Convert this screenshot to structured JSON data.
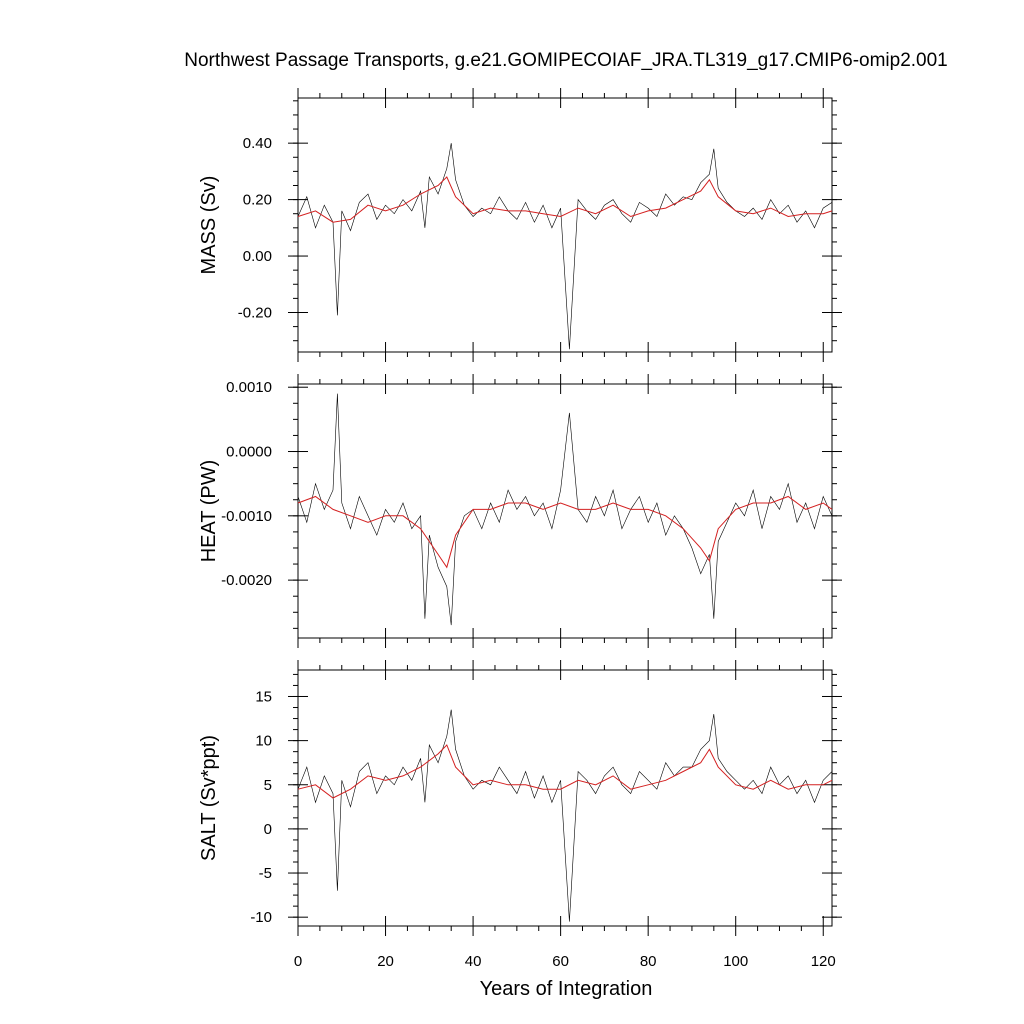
{
  "title": "Northwest Passage Transports, g.e21.GOMIPECOIAF_JRA.TL319_g17.CMIP6-omip2.001",
  "chart_data": [
    {
      "type": "line",
      "ylabel": "MASS (Sv)",
      "xlim": [
        0,
        122
      ],
      "ylim": [
        -0.34,
        0.56
      ],
      "yticks": [
        -0.2,
        0.0,
        0.2,
        0.4
      ],
      "ytick_labels": [
        "-0.20",
        "0.00",
        "0.20",
        "0.40"
      ],
      "series": [
        {
          "color": "#000000",
          "x": [
            0,
            2,
            4,
            6,
            8,
            9,
            10,
            12,
            14,
            16,
            18,
            20,
            22,
            24,
            26,
            28,
            29,
            30,
            32,
            34,
            35,
            36,
            38,
            40,
            42,
            44,
            46,
            48,
            50,
            52,
            54,
            56,
            58,
            60,
            62,
            64,
            66,
            68,
            70,
            72,
            74,
            76,
            78,
            80,
            82,
            84,
            86,
            88,
            90,
            92,
            94,
            95,
            96,
            98,
            100,
            102,
            104,
            106,
            108,
            110,
            112,
            114,
            116,
            118,
            120,
            122
          ],
          "y": [
            0.14,
            0.21,
            0.1,
            0.18,
            0.12,
            -0.21,
            0.16,
            0.09,
            0.19,
            0.22,
            0.13,
            0.18,
            0.15,
            0.2,
            0.16,
            0.23,
            0.1,
            0.28,
            0.22,
            0.31,
            0.4,
            0.27,
            0.18,
            0.14,
            0.17,
            0.15,
            0.21,
            0.16,
            0.13,
            0.19,
            0.12,
            0.18,
            0.1,
            0.17,
            -0.33,
            0.2,
            0.16,
            0.13,
            0.18,
            0.2,
            0.15,
            0.12,
            0.19,
            0.17,
            0.14,
            0.22,
            0.18,
            0.21,
            0.2,
            0.26,
            0.29,
            0.38,
            0.24,
            0.19,
            0.16,
            0.14,
            0.17,
            0.13,
            0.2,
            0.15,
            0.18,
            0.12,
            0.16,
            0.1,
            0.17,
            0.19
          ]
        },
        {
          "color": "#d42020",
          "x": [
            0,
            4,
            8,
            12,
            16,
            20,
            24,
            28,
            32,
            34,
            36,
            40,
            44,
            48,
            52,
            56,
            60,
            64,
            68,
            72,
            76,
            80,
            84,
            88,
            92,
            94,
            96,
            100,
            104,
            108,
            112,
            116,
            120,
            122
          ],
          "y": [
            0.14,
            0.16,
            0.12,
            0.13,
            0.18,
            0.16,
            0.18,
            0.22,
            0.25,
            0.28,
            0.21,
            0.15,
            0.17,
            0.16,
            0.16,
            0.15,
            0.14,
            0.17,
            0.15,
            0.18,
            0.14,
            0.16,
            0.17,
            0.2,
            0.23,
            0.27,
            0.21,
            0.16,
            0.15,
            0.17,
            0.14,
            0.15,
            0.15,
            0.16
          ]
        }
      ]
    },
    {
      "type": "line",
      "ylabel": "HEAT (PW)",
      "xlim": [
        0,
        122
      ],
      "ylim": [
        -0.0029,
        0.00105
      ],
      "yticks": [
        -0.002,
        -0.001,
        0.0,
        0.001
      ],
      "ytick_labels": [
        "-0.0020",
        "-0.0010",
        "0.0000",
        "0.0010"
      ],
      "series": [
        {
          "color": "#000000",
          "x": [
            0,
            2,
            4,
            6,
            8,
            9,
            10,
            12,
            14,
            16,
            18,
            20,
            22,
            24,
            26,
            28,
            29,
            30,
            32,
            34,
            35,
            36,
            38,
            40,
            42,
            44,
            46,
            48,
            50,
            52,
            54,
            56,
            58,
            60,
            62,
            64,
            66,
            68,
            70,
            72,
            74,
            76,
            78,
            80,
            82,
            84,
            86,
            88,
            90,
            92,
            94,
            95,
            96,
            98,
            100,
            102,
            104,
            106,
            108,
            110,
            112,
            114,
            116,
            118,
            120,
            122
          ],
          "y": [
            -0.0007,
            -0.0011,
            -0.0005,
            -0.0009,
            -0.0006,
            0.0009,
            -0.0008,
            -0.0012,
            -0.0007,
            -0.001,
            -0.0013,
            -0.0009,
            -0.0011,
            -0.0008,
            -0.0012,
            -0.001,
            -0.0026,
            -0.0013,
            -0.0018,
            -0.0021,
            -0.0027,
            -0.0014,
            -0.001,
            -0.0009,
            -0.0012,
            -0.0008,
            -0.0011,
            -0.0006,
            -0.0009,
            -0.0007,
            -0.001,
            -0.0008,
            -0.0012,
            -0.0006,
            0.0006,
            -0.0009,
            -0.0011,
            -0.0007,
            -0.001,
            -0.0006,
            -0.0012,
            -0.0009,
            -0.0007,
            -0.0011,
            -0.0008,
            -0.0013,
            -0.001,
            -0.0012,
            -0.0015,
            -0.0019,
            -0.0016,
            -0.0026,
            -0.0014,
            -0.0011,
            -0.0008,
            -0.001,
            -0.0006,
            -0.0012,
            -0.0007,
            -0.0009,
            -0.0005,
            -0.0011,
            -0.0008,
            -0.0012,
            -0.0007,
            -0.001
          ]
        },
        {
          "color": "#d42020",
          "x": [
            0,
            4,
            8,
            12,
            16,
            20,
            24,
            28,
            32,
            34,
            36,
            40,
            44,
            48,
            52,
            56,
            60,
            64,
            68,
            72,
            76,
            80,
            84,
            88,
            92,
            94,
            96,
            100,
            104,
            108,
            112,
            116,
            120,
            122
          ],
          "y": [
            -0.0008,
            -0.0007,
            -0.0009,
            -0.001,
            -0.0011,
            -0.001,
            -0.001,
            -0.0012,
            -0.0016,
            -0.0018,
            -0.0013,
            -0.0009,
            -0.0009,
            -0.0008,
            -0.0008,
            -0.0009,
            -0.0008,
            -0.0009,
            -0.0009,
            -0.0008,
            -0.0009,
            -0.0009,
            -0.001,
            -0.0012,
            -0.0015,
            -0.0017,
            -0.0012,
            -0.0009,
            -0.0008,
            -0.0008,
            -0.0007,
            -0.0009,
            -0.0008,
            -0.0009
          ]
        }
      ]
    },
    {
      "type": "line",
      "ylabel": "SALT (Sv*ppt)",
      "xlabel": "Years of Integration",
      "xlim": [
        0,
        122
      ],
      "xticks": [
        0,
        20,
        40,
        60,
        80,
        100,
        120
      ],
      "xtick_labels": [
        "0",
        "20",
        "40",
        "60",
        "80",
        "100",
        "120"
      ],
      "ylim": [
        -11,
        18
      ],
      "yticks": [
        -10,
        -5,
        0,
        5,
        10,
        15
      ],
      "ytick_labels": [
        "-10",
        "-5",
        "0",
        "5",
        "10",
        "15"
      ],
      "series": [
        {
          "color": "#000000",
          "x": [
            0,
            2,
            4,
            6,
            8,
            9,
            10,
            12,
            14,
            16,
            18,
            20,
            22,
            24,
            26,
            28,
            29,
            30,
            32,
            34,
            35,
            36,
            38,
            40,
            42,
            44,
            46,
            48,
            50,
            52,
            54,
            56,
            58,
            60,
            62,
            64,
            66,
            68,
            70,
            72,
            74,
            76,
            78,
            80,
            82,
            84,
            86,
            88,
            90,
            92,
            94,
            95,
            96,
            98,
            100,
            102,
            104,
            106,
            108,
            110,
            112,
            114,
            116,
            118,
            120,
            122
          ],
          "y": [
            4.5,
            7.0,
            3.0,
            6.0,
            4.0,
            -7.0,
            5.5,
            2.5,
            6.5,
            7.5,
            4.0,
            6.0,
            5.0,
            7.0,
            5.5,
            8.0,
            3.0,
            9.5,
            7.5,
            10.5,
            13.5,
            9.0,
            6.0,
            4.5,
            5.5,
            5.0,
            7.0,
            5.5,
            4.0,
            6.5,
            3.5,
            6.0,
            3.0,
            5.5,
            -10.5,
            6.5,
            5.5,
            4.0,
            6.0,
            7.0,
            5.0,
            4.0,
            6.5,
            5.5,
            4.5,
            7.5,
            6.0,
            7.0,
            7.0,
            9.0,
            10.0,
            13.0,
            8.0,
            6.5,
            5.5,
            4.5,
            5.5,
            4.0,
            7.0,
            5.0,
            6.0,
            4.0,
            5.5,
            3.0,
            5.5,
            6.5
          ]
        },
        {
          "color": "#d42020",
          "x": [
            0,
            4,
            8,
            12,
            16,
            20,
            24,
            28,
            32,
            34,
            36,
            40,
            44,
            48,
            52,
            56,
            60,
            64,
            68,
            72,
            76,
            80,
            84,
            88,
            92,
            94,
            96,
            100,
            104,
            108,
            112,
            116,
            120,
            122
          ],
          "y": [
            4.5,
            5.0,
            3.5,
            4.5,
            6.0,
            5.5,
            6.0,
            7.0,
            8.5,
            9.5,
            7.0,
            5.0,
            5.5,
            5.0,
            5.0,
            4.5,
            4.5,
            5.5,
            5.0,
            6.0,
            4.5,
            5.0,
            5.5,
            6.5,
            7.5,
            9.0,
            7.0,
            5.0,
            4.5,
            5.5,
            4.5,
            5.0,
            5.0,
            5.5
          ]
        }
      ]
    }
  ]
}
